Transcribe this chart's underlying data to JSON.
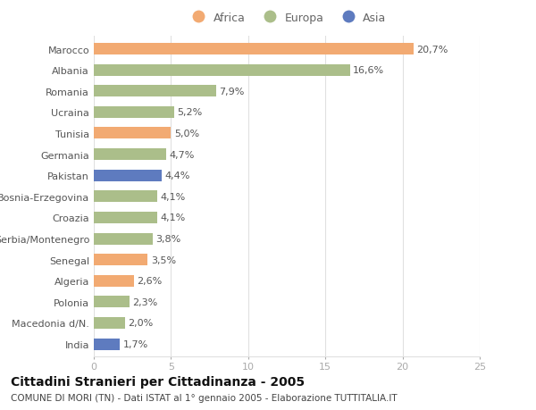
{
  "categories": [
    "Marocco",
    "Albania",
    "Romania",
    "Ucraina",
    "Tunisia",
    "Germania",
    "Pakistan",
    "Bosnia-Erzegovina",
    "Croazia",
    "Serbia/Montenegro",
    "Senegal",
    "Algeria",
    "Polonia",
    "Macedonia d/N.",
    "India"
  ],
  "values": [
    20.7,
    16.6,
    7.9,
    5.2,
    5.0,
    4.7,
    4.4,
    4.1,
    4.1,
    3.8,
    3.5,
    2.6,
    2.3,
    2.0,
    1.7
  ],
  "labels": [
    "20,7%",
    "16,6%",
    "7,9%",
    "5,2%",
    "5,0%",
    "4,7%",
    "4,4%",
    "4,1%",
    "4,1%",
    "3,8%",
    "3,5%",
    "2,6%",
    "2,3%",
    "2,0%",
    "1,7%"
  ],
  "continents": [
    "Africa",
    "Europa",
    "Europa",
    "Europa",
    "Africa",
    "Europa",
    "Asia",
    "Europa",
    "Europa",
    "Europa",
    "Africa",
    "Africa",
    "Europa",
    "Europa",
    "Asia"
  ],
  "colors": {
    "Africa": "#F2AA72",
    "Europa": "#ABBE8A",
    "Asia": "#5E7BBF"
  },
  "xlim": [
    0,
    25
  ],
  "xticks": [
    0,
    5,
    10,
    15,
    20,
    25
  ],
  "title": "Cittadini Stranieri per Cittadinanza - 2005",
  "subtitle": "COMUNE DI MORI (TN) - Dati ISTAT al 1° gennaio 2005 - Elaborazione TUTTITALIA.IT",
  "background_color": "#ffffff",
  "grid_color": "#e0e0e0",
  "bar_height": 0.55,
  "title_fontsize": 10,
  "subtitle_fontsize": 7.5,
  "tick_fontsize": 8,
  "label_fontsize": 8,
  "legend_fontsize": 9
}
